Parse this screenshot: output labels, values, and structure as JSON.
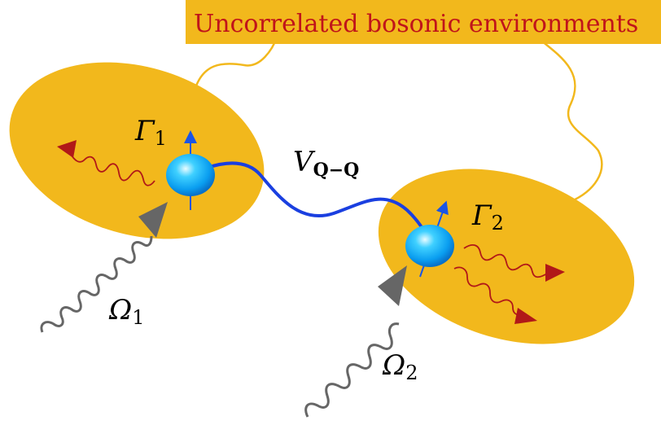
{
  "environment_label": "Uncorrelated bosonic environments",
  "labels": {
    "gamma1": {
      "symbol": "Γ",
      "subscript": "1"
    },
    "gamma2": {
      "symbol": "Γ",
      "subscript": "2"
    },
    "coupling": {
      "symbol": "V",
      "subscript": "Q−Q"
    },
    "omega1": {
      "symbol": "Ω",
      "subscript": "1"
    },
    "omega2": {
      "symbol": "Ω",
      "subscript": "2"
    }
  },
  "colors": {
    "environment_fill": "#f2b81c",
    "environment_line": "#f2b81c",
    "label_text": "#c0141a",
    "coupling_wire": "#1a3fe0",
    "spin_arrow": "#1a55e6",
    "emission_arrow": "#b11818",
    "drive_arrow": "#666666",
    "quantum_dot": "#1aa8f2"
  }
}
